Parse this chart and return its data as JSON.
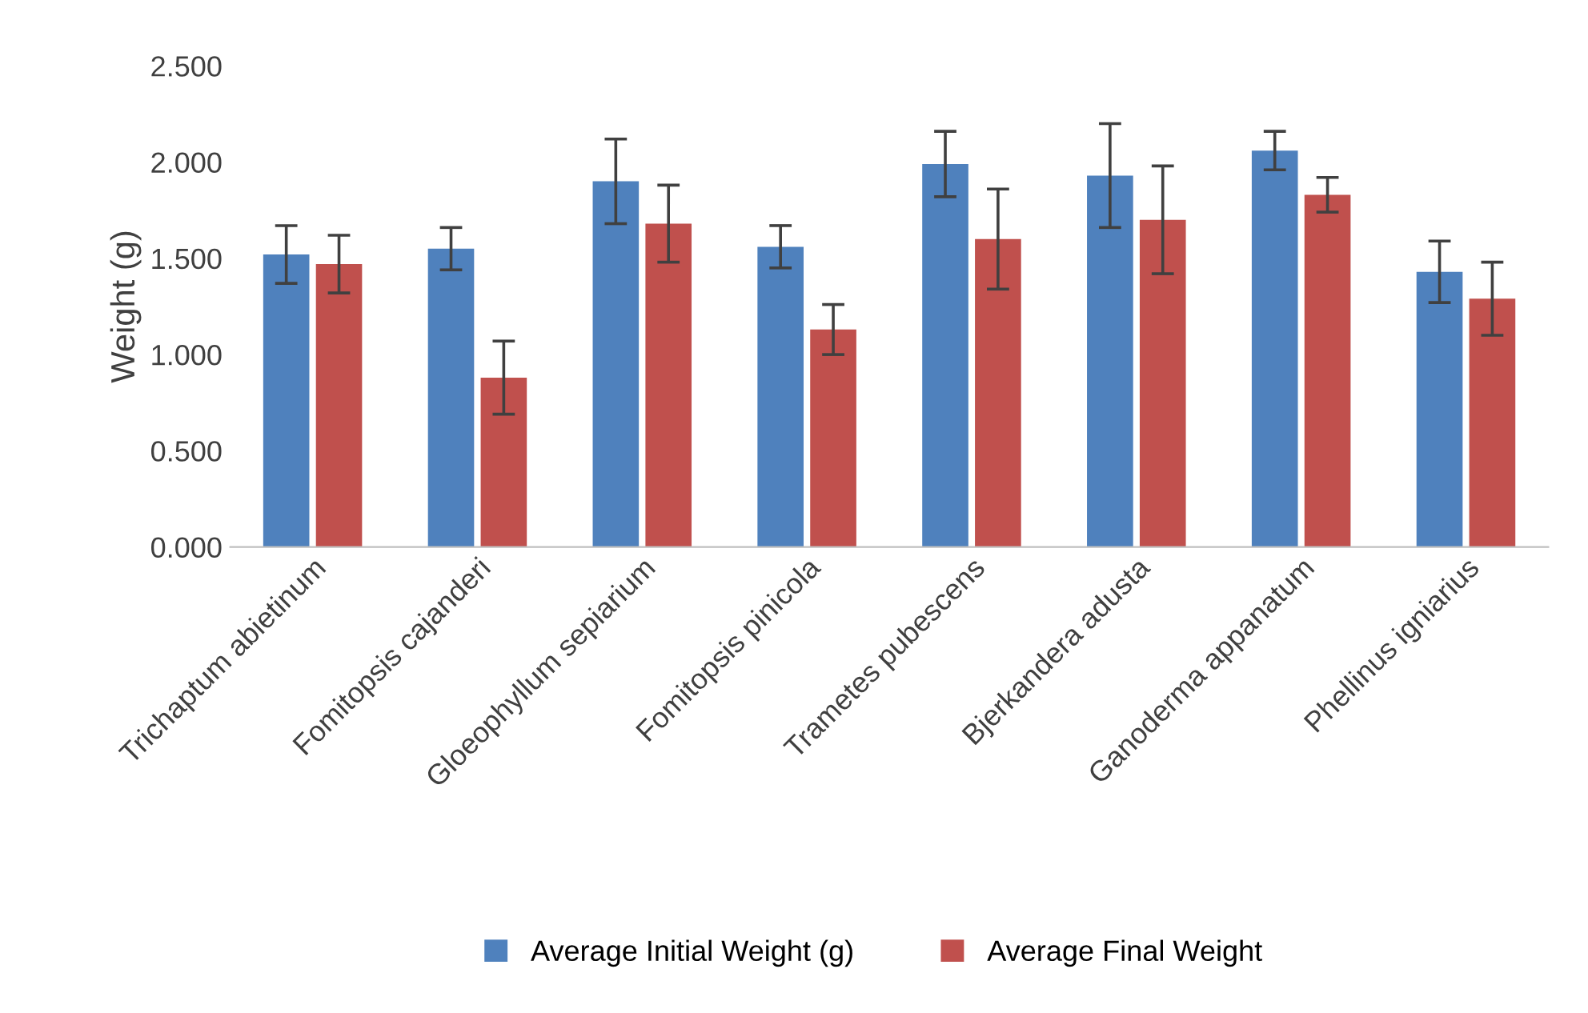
{
  "chart_data": {
    "type": "bar",
    "ylabel": "Weight (g)",
    "categories": [
      "Trichaptum abietinum",
      "Fomitopsis cajanderi",
      "Gloeophyllum sepiarium",
      "Fomitopsis pinicola",
      "Trametes pubescens",
      "Bjerkandera adusta",
      "Ganoderma appanatum",
      "Phellinus igniarius"
    ],
    "series": [
      {
        "name": "Average Initial Weight (g)",
        "color": "#4f81bd",
        "values": [
          1.52,
          1.55,
          1.9,
          1.56,
          1.99,
          1.93,
          2.06,
          1.43
        ],
        "errors": [
          0.15,
          0.11,
          0.22,
          0.11,
          0.17,
          0.27,
          0.1,
          0.16
        ]
      },
      {
        "name": "Average Final Weight",
        "color": "#c0504d",
        "values": [
          1.47,
          0.88,
          1.68,
          1.13,
          1.6,
          1.7,
          1.83,
          1.29
        ],
        "errors": [
          0.15,
          0.19,
          0.2,
          0.13,
          0.26,
          0.28,
          0.09,
          0.19
        ]
      }
    ],
    "ylim": [
      0,
      2.5
    ],
    "yticks": [
      {
        "value": 0,
        "label": "0.000"
      },
      {
        "value": 0.5,
        "label": "0.500"
      },
      {
        "value": 1,
        "label": "1.000"
      },
      {
        "value": 1.5,
        "label": "1.500"
      },
      {
        "value": 2,
        "label": "2.000"
      },
      {
        "value": 2.5,
        "label": "2.500"
      }
    ],
    "legend": "bottom",
    "grid": false
  }
}
